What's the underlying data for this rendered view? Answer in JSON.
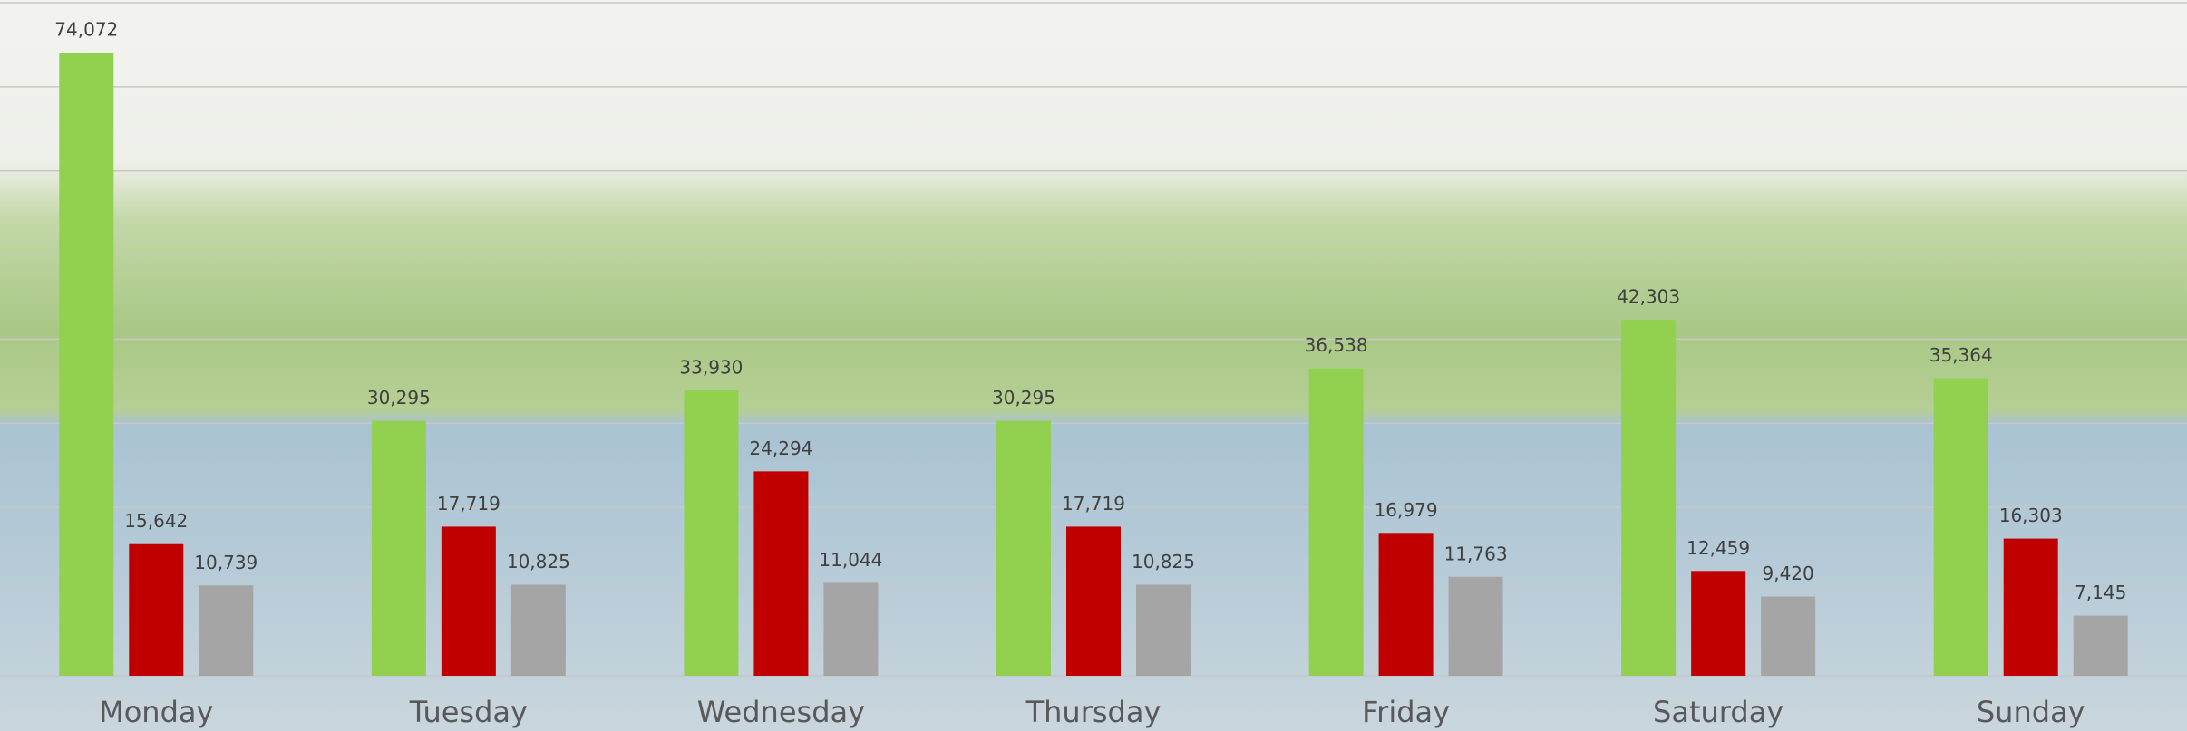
{
  "chart_data": {
    "type": "bar",
    "categories": [
      "Monday",
      "Tuesday",
      "Wednesday",
      "Thursday",
      "Friday",
      "Saturday",
      "Sunday"
    ],
    "series": [
      {
        "color": "#92d050",
        "values": [
          74072,
          30295,
          33930,
          30295,
          36538,
          42303,
          35364
        ],
        "value_labels": [
          "74,072",
          "30,295",
          "33,930",
          "30,295",
          "36,538",
          "42,303",
          "35,364"
        ]
      },
      {
        "color": "#c00000",
        "values": [
          15642,
          17719,
          24294,
          17719,
          16979,
          12459,
          16303
        ],
        "value_labels": [
          "15,642",
          "17,719",
          "24,294",
          "17,719",
          "16,979",
          "12,459",
          "16,303"
        ]
      },
      {
        "color": "#a5a5a5",
        "values": [
          10739,
          10825,
          11044,
          10825,
          11763,
          9420,
          7145
        ],
        "value_labels": [
          "10,739",
          "10,825",
          "11,044",
          "10,825",
          "11,763",
          "9,420",
          "7,145"
        ]
      }
    ],
    "ylim": [
      0,
      80000
    ],
    "yticks": [
      0,
      10000,
      20000,
      30000,
      40000,
      50000,
      60000,
      70000,
      80000
    ],
    "grid": true
  }
}
